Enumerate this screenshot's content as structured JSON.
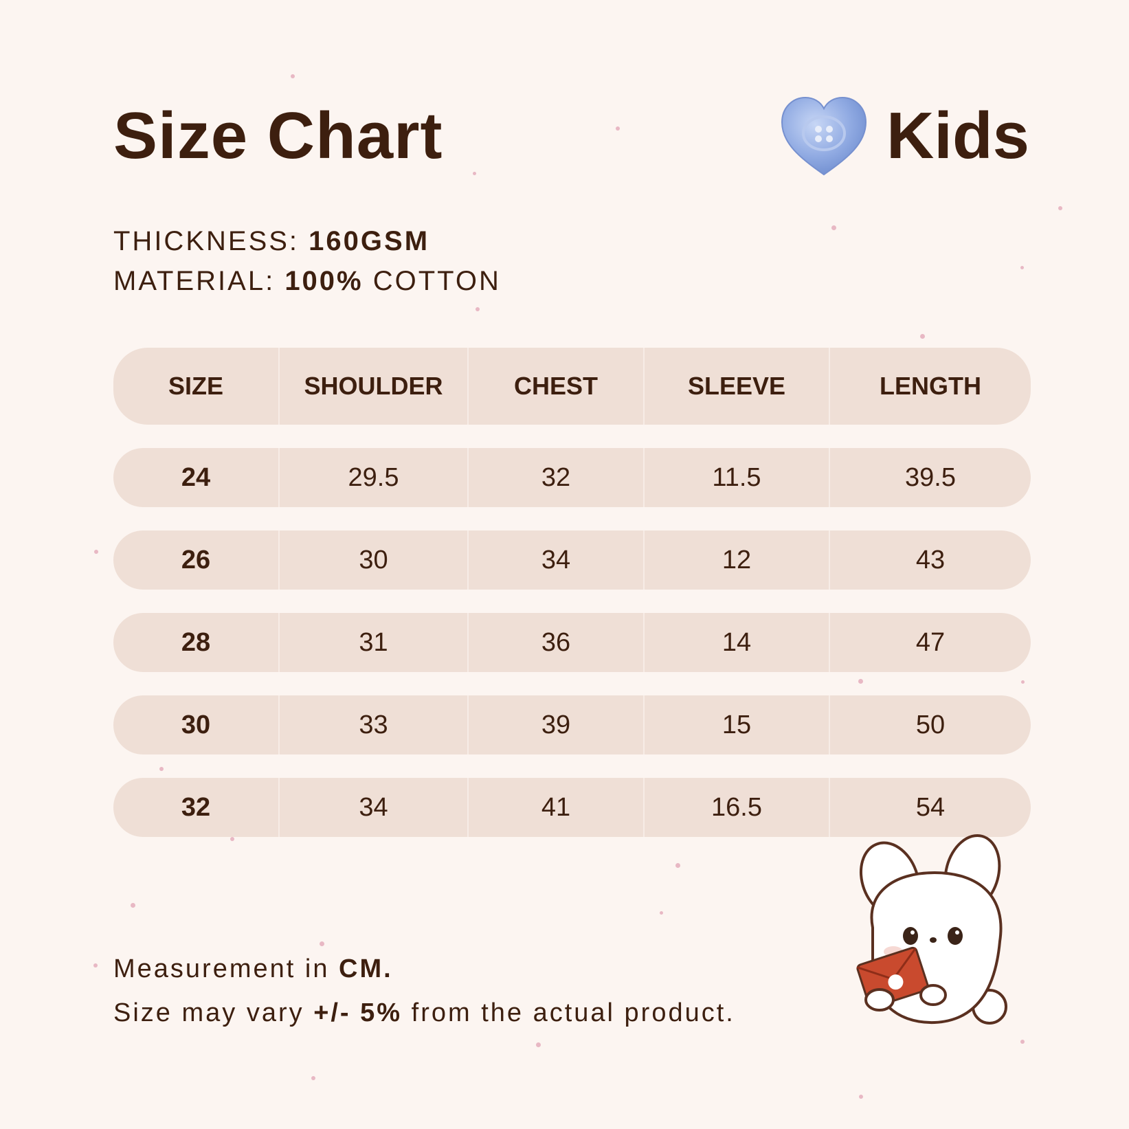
{
  "title": "Size Chart",
  "brand": {
    "label": "Kids",
    "icon": "heart-button-icon",
    "icon_color": "#8fa9e0"
  },
  "specs": {
    "thickness_label": "THICKNESS:",
    "thickness_value": "160GSM",
    "material_label": "MATERIAL:",
    "material_value_bold": "100%",
    "material_value_rest": "COTTON"
  },
  "table": {
    "headers": [
      "SIZE",
      "SHOULDER",
      "CHEST",
      "SLEEVE",
      "LENGTH"
    ],
    "rows": [
      [
        "24",
        "29.5",
        "32",
        "11.5",
        "39.5"
      ],
      [
        "26",
        "30",
        "34",
        "12",
        "43"
      ],
      [
        "28",
        "31",
        "36",
        "14",
        "47"
      ],
      [
        "30",
        "33",
        "39",
        "15",
        "50"
      ],
      [
        "32",
        "34",
        "41",
        "16.5",
        "54"
      ]
    ]
  },
  "notes": {
    "line1_prefix": "Measurement in",
    "line1_bold": "CM.",
    "line2_prefix": "Size may vary",
    "line2_bold": "+/- 5%",
    "line2_suffix": "from the actual product."
  },
  "mascot": {
    "icon": "bunny-mascot-icon"
  },
  "colors": {
    "background": "#fcf5f1",
    "row_fill": "#efdfd6",
    "text": "#3d1f0f",
    "envelope": "#c94a2e"
  }
}
